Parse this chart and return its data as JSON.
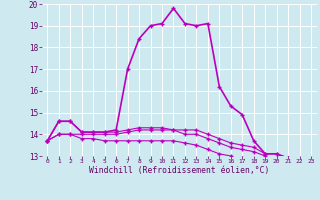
{
  "xlabel": "Windchill (Refroidissement éolien,°C)",
  "bg_color": "#ceeaf0",
  "grid_color": "#ffffff",
  "line_color": "#bb00bb",
  "x_ticks": [
    0,
    1,
    2,
    3,
    4,
    5,
    6,
    7,
    8,
    9,
    10,
    11,
    12,
    13,
    14,
    15,
    16,
    17,
    18,
    19,
    20,
    21,
    22,
    23
  ],
  "ylim": [
    13,
    20
  ],
  "xlim": [
    -0.5,
    23.5
  ],
  "line1_y": [
    13.7,
    14.6,
    14.6,
    14.1,
    14.1,
    14.1,
    14.1,
    14.2,
    14.3,
    14.3,
    14.3,
    14.2,
    14.2,
    14.2,
    14.0,
    13.8,
    13.6,
    13.5,
    13.4,
    13.1,
    13.1,
    12.9,
    12.7,
    12.7
  ],
  "line2_y": [
    13.7,
    14.6,
    14.6,
    14.1,
    14.1,
    14.1,
    14.2,
    17.0,
    18.4,
    19.0,
    19.1,
    19.8,
    19.1,
    19.0,
    19.1,
    16.2,
    15.3,
    14.9,
    13.7,
    13.1,
    13.1,
    12.9,
    12.7,
    12.7
  ],
  "line3_y": [
    13.7,
    14.0,
    14.0,
    13.8,
    13.8,
    13.7,
    13.7,
    13.7,
    13.7,
    13.7,
    13.7,
    13.7,
    13.6,
    13.5,
    13.3,
    13.1,
    13.0,
    12.9,
    12.8,
    12.8,
    12.7,
    12.6,
    12.6,
    12.6
  ],
  "line4_y": [
    13.7,
    14.0,
    14.0,
    14.0,
    14.0,
    14.0,
    14.0,
    14.1,
    14.2,
    14.2,
    14.2,
    14.2,
    14.0,
    14.0,
    13.8,
    13.6,
    13.4,
    13.3,
    13.2,
    13.0,
    12.9,
    12.7,
    12.6,
    12.6
  ],
  "yticks": [
    13,
    14,
    15,
    16,
    17,
    18,
    19,
    20
  ]
}
